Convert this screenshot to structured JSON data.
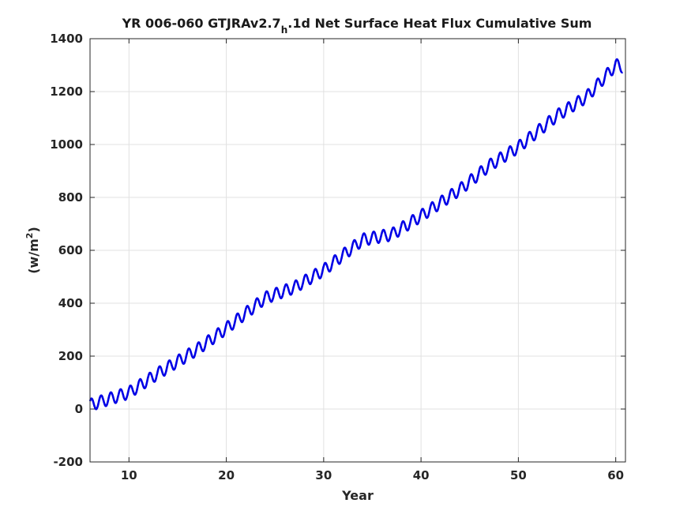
{
  "chart_data": {
    "type": "line",
    "title_main": "YR 006-060 GTJRAv2.7",
    "title_sub": "h",
    "title_rest": ".1d Net Surface Heat Flux  Cumulative Sum",
    "xlabel": "Year",
    "ylabel_main": "(w/m",
    "ylabel_sup": "2",
    "ylabel_close": ")",
    "xlim": [
      6,
      61
    ],
    "ylim": [
      -200,
      1400
    ],
    "xticks": [
      10,
      20,
      30,
      40,
      50,
      60
    ],
    "xtick_labels": [
      "10",
      "20",
      "30",
      "40",
      "50",
      "60"
    ],
    "yticks": [
      -200,
      0,
      200,
      400,
      600,
      800,
      1000,
      1200,
      1400
    ],
    "ytick_labels": [
      "-200",
      "0",
      "200",
      "400",
      "600",
      "800",
      "1000",
      "1200",
      "1400"
    ],
    "grid": true,
    "series": [
      {
        "color": "#0000e6",
        "seasonal_amplitude": 23,
        "x": [
          6,
          10,
          13,
          17,
          20,
          24,
          27,
          30,
          34,
          37,
          40,
          44,
          47,
          50,
          54,
          57,
          60,
          60.7
        ],
        "y": [
          15,
          62,
          135,
          225,
          305,
          420,
          460,
          525,
          640,
          660,
          730,
          830,
          920,
          990,
          1110,
          1180,
          1300,
          1295
        ]
      }
    ]
  }
}
